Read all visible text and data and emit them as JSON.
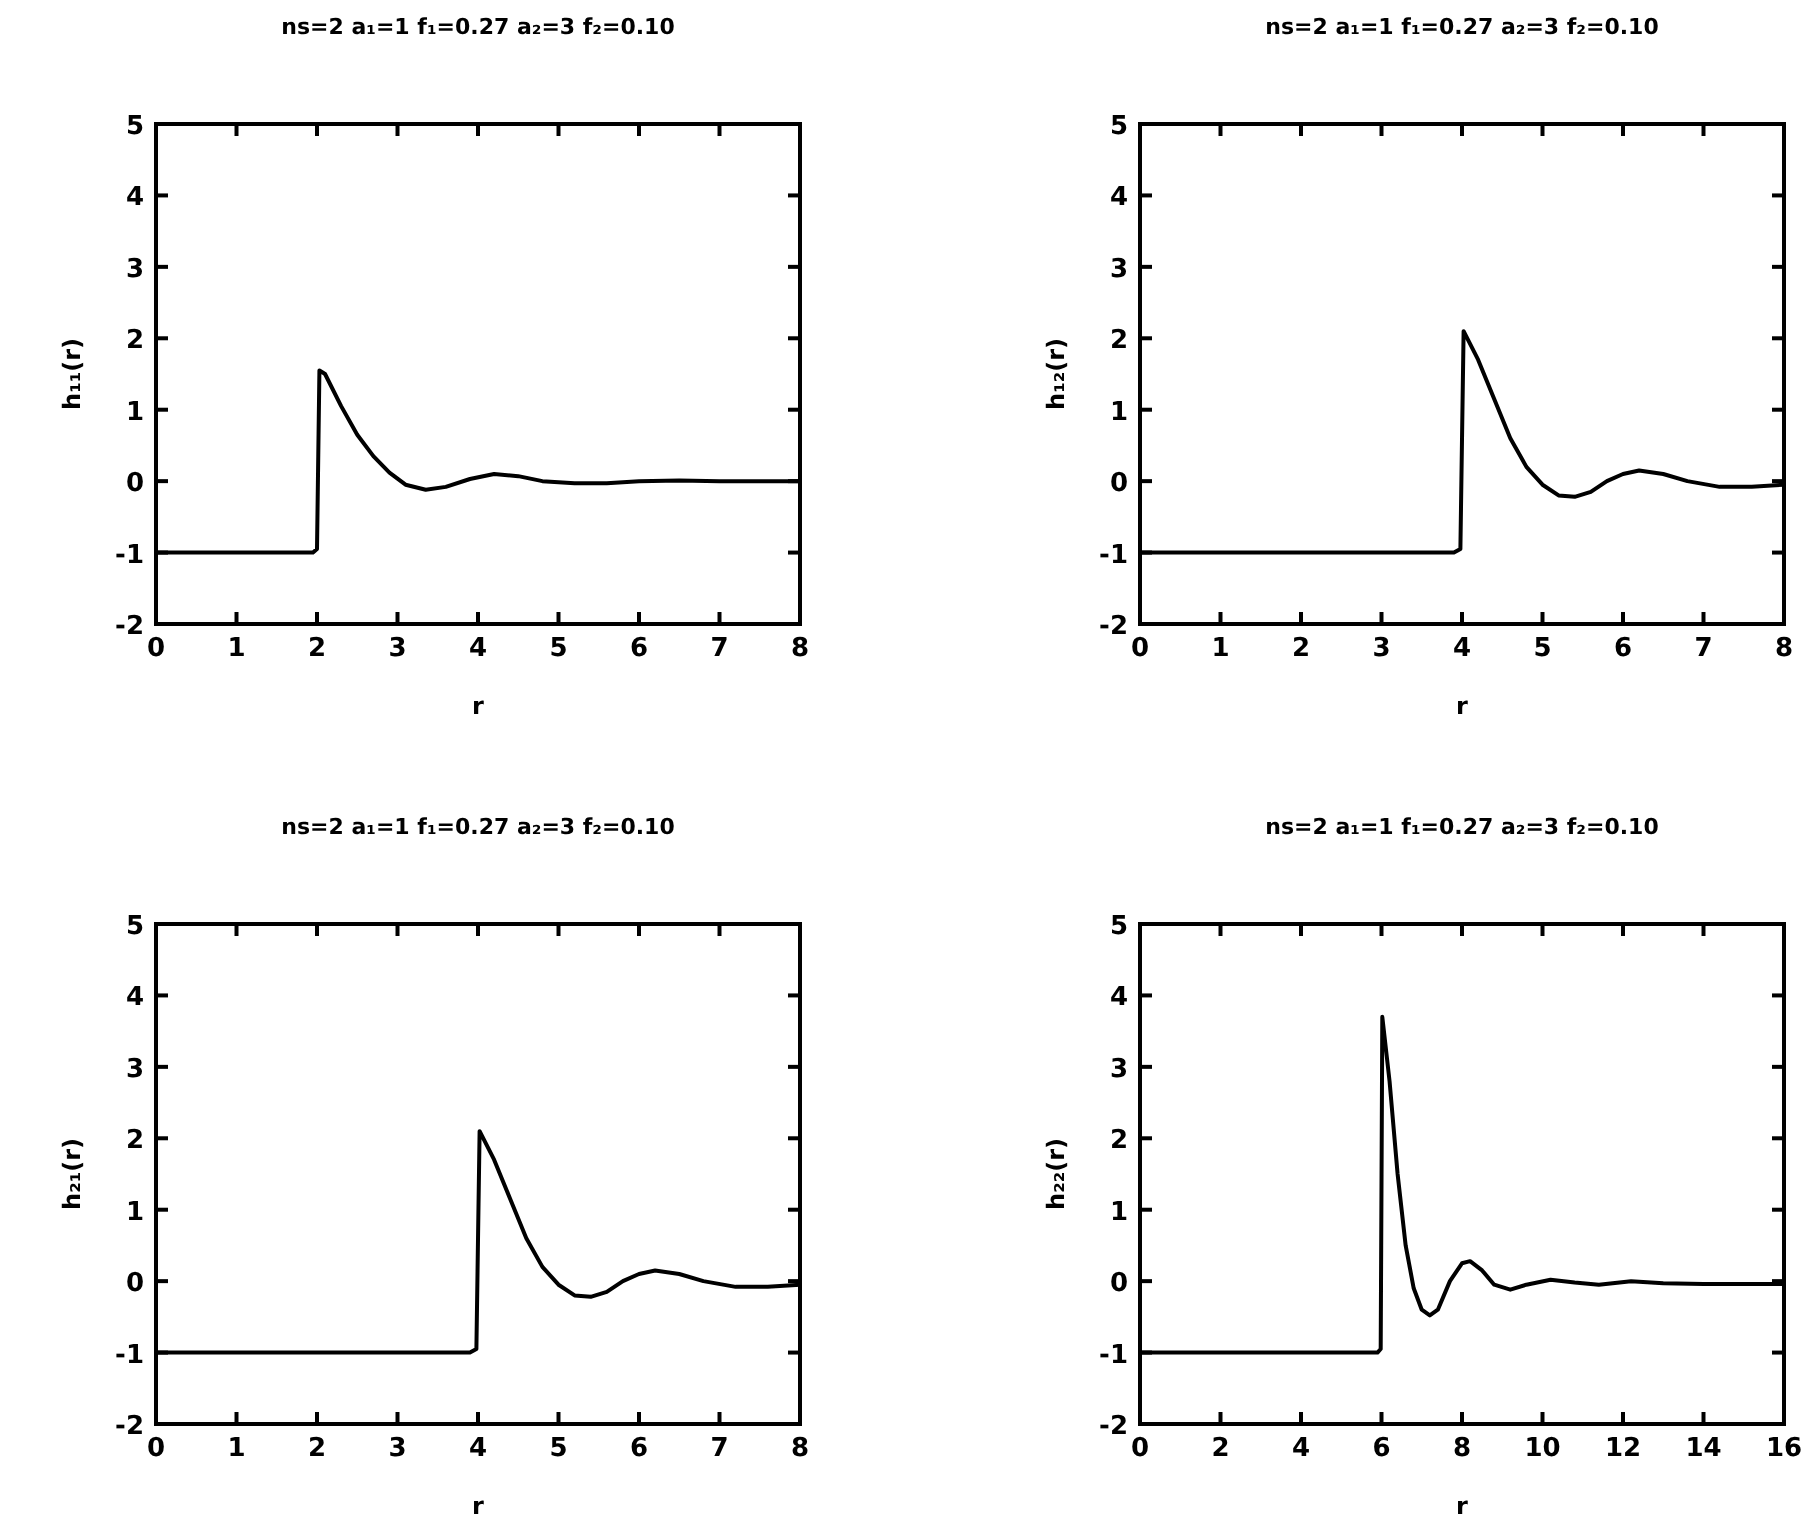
{
  "chart_data": [
    {
      "type": "line",
      "title": "ns=2 a₁=1 f₁=0.27 a₂=3 f₂=0.10",
      "xlabel": "r",
      "ylabel": "h₁₁(r)",
      "xlim": [
        0,
        8
      ],
      "ylim": [
        -2,
        5
      ],
      "xticks": [
        0,
        1,
        2,
        3,
        4,
        5,
        6,
        7,
        8
      ],
      "yticks": [
        -2,
        -1,
        0,
        1,
        2,
        3,
        4,
        5
      ],
      "series": [
        {
          "color": "#000000",
          "x": [
            0,
            1,
            1.95,
            2.0,
            2.03,
            2.1,
            2.3,
            2.5,
            2.7,
            2.9,
            3.1,
            3.35,
            3.6,
            3.9,
            4.2,
            4.5,
            4.8,
            5.2,
            5.6,
            6,
            6.5,
            7,
            8
          ],
          "values": [
            -1,
            -1,
            -1,
            -0.95,
            1.55,
            1.5,
            1.05,
            0.65,
            0.35,
            0.12,
            -0.05,
            -0.12,
            -0.08,
            0.03,
            0.1,
            0.07,
            0,
            -0.03,
            -0.03,
            0,
            0.01,
            0,
            0
          ]
        }
      ]
    },
    {
      "type": "line",
      "title": "ns=2 a₁=1 f₁=0.27 a₂=3 f₂=0.10",
      "xlabel": "r",
      "ylabel": "h₁₂(r)",
      "xlim": [
        0,
        8
      ],
      "ylim": [
        -2,
        5
      ],
      "xticks": [
        0,
        1,
        2,
        3,
        4,
        5,
        6,
        7,
        8
      ],
      "yticks": [
        -2,
        -1,
        0,
        1,
        2,
        3,
        4,
        5
      ],
      "series": [
        {
          "color": "#000000",
          "x": [
            0,
            2,
            3.9,
            3.98,
            4.02,
            4.2,
            4.4,
            4.6,
            4.8,
            5.0,
            5.2,
            5.4,
            5.6,
            5.8,
            6.0,
            6.2,
            6.5,
            6.8,
            7.2,
            7.6,
            8
          ],
          "values": [
            -1,
            -1,
            -1,
            -0.95,
            2.1,
            1.7,
            1.15,
            0.6,
            0.2,
            -0.05,
            -0.2,
            -0.22,
            -0.15,
            0,
            0.1,
            0.15,
            0.1,
            0,
            -0.08,
            -0.08,
            -0.05
          ]
        }
      ]
    },
    {
      "type": "line",
      "title": "ns=2 a₁=1 f₁=0.27 a₂=3 f₂=0.10",
      "xlabel": "r",
      "ylabel": "h₂₁(r)",
      "xlim": [
        0,
        8
      ],
      "ylim": [
        -2,
        5
      ],
      "xticks": [
        0,
        1,
        2,
        3,
        4,
        5,
        6,
        7,
        8
      ],
      "yticks": [
        -2,
        -1,
        0,
        1,
        2,
        3,
        4,
        5
      ],
      "series": [
        {
          "color": "#000000",
          "x": [
            0,
            2,
            3.9,
            3.98,
            4.02,
            4.2,
            4.4,
            4.6,
            4.8,
            5.0,
            5.2,
            5.4,
            5.6,
            5.8,
            6.0,
            6.2,
            6.5,
            6.8,
            7.2,
            7.6,
            8
          ],
          "values": [
            -1,
            -1,
            -1,
            -0.95,
            2.1,
            1.7,
            1.15,
            0.6,
            0.2,
            -0.05,
            -0.2,
            -0.22,
            -0.15,
            0,
            0.1,
            0.15,
            0.1,
            0,
            -0.08,
            -0.08,
            -0.05
          ]
        }
      ]
    },
    {
      "type": "line",
      "title": "ns=2 a₁=1 f₁=0.27 a₂=3 f₂=0.10",
      "xlabel": "r",
      "ylabel": "h₂₂(r)",
      "xlim": [
        0,
        16
      ],
      "ylim": [
        -2,
        5
      ],
      "xticks": [
        0,
        2,
        4,
        6,
        8,
        10,
        12,
        14,
        16
      ],
      "yticks": [
        -2,
        -1,
        0,
        1,
        2,
        3,
        4,
        5
      ],
      "series": [
        {
          "color": "#000000",
          "x": [
            0,
            3,
            5.9,
            5.98,
            6.02,
            6.2,
            6.4,
            6.6,
            6.8,
            7.0,
            7.2,
            7.4,
            7.7,
            8.0,
            8.2,
            8.5,
            8.8,
            9.2,
            9.6,
            10.2,
            10.8,
            11.4,
            12.2,
            13,
            14,
            16
          ],
          "values": [
            -1,
            -1,
            -1,
            -0.95,
            3.7,
            2.8,
            1.5,
            0.5,
            -0.1,
            -0.4,
            -0.48,
            -0.4,
            0,
            0.25,
            0.28,
            0.15,
            -0.05,
            -0.12,
            -0.05,
            0.02,
            -0.02,
            -0.05,
            0,
            -0.03,
            -0.04,
            -0.04
          ]
        }
      ]
    }
  ]
}
